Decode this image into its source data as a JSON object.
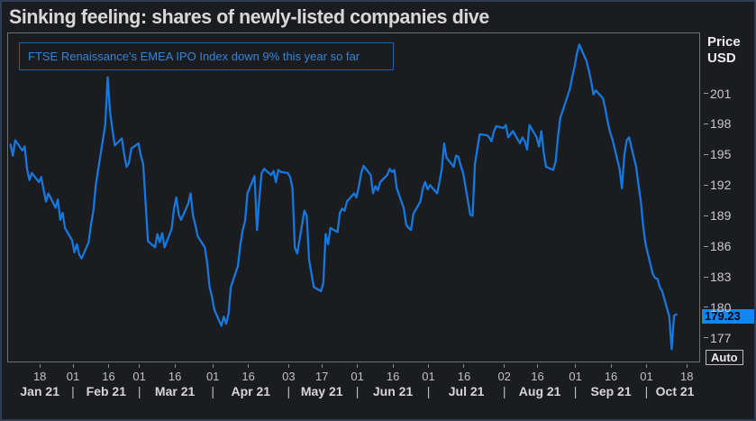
{
  "window": {
    "title": "Sinking feeling: shares of newly-listed companies dive"
  },
  "annotation": {
    "text": "FTSE Renaissance's EMEA IPO Index down 9% this year so far"
  },
  "y_axis": {
    "header_line1": "Price",
    "header_line2": "USD",
    "last_price_label": "179.23",
    "auto_label": "Auto"
  },
  "colors": {
    "line_blue": "#1677dd",
    "flag_bg": "#0f86f2",
    "annotation_border": "#1d63ac",
    "annotation_text": "#3585d6",
    "window_border": "#2f3d55",
    "plot_border": "#6e726b"
  },
  "chart_data": {
    "type": "line",
    "title": "Sinking feeling: shares of newly-listed companies dive",
    "annotation": "FTSE Renaissance's EMEA IPO Index down 9% this year so far",
    "ylabel": "Price USD",
    "legend_position": "none",
    "grid": false,
    "x_domain": [
      "2021-01-05",
      "2021-10-24"
    ],
    "y_domain": [
      174.6,
      206.8
    ],
    "y_ticks": [
      177,
      180,
      183,
      186,
      189,
      192,
      195,
      198,
      201
    ],
    "last_price": 179.23,
    "x_ticks": [
      {
        "date": "2021-01-18",
        "label": "18"
      },
      {
        "date": "2021-02-01",
        "label": "01"
      },
      {
        "date": "2021-02-16",
        "label": "16"
      },
      {
        "date": "2021-03-01",
        "label": "01"
      },
      {
        "date": "2021-03-16",
        "label": "16"
      },
      {
        "date": "2021-04-01",
        "label": "01"
      },
      {
        "date": "2021-04-16",
        "label": "16"
      },
      {
        "date": "2021-05-03",
        "label": "03"
      },
      {
        "date": "2021-05-17",
        "label": "17"
      },
      {
        "date": "2021-06-01",
        "label": "01"
      },
      {
        "date": "2021-06-16",
        "label": "16"
      },
      {
        "date": "2021-07-01",
        "label": "01"
      },
      {
        "date": "2021-07-16",
        "label": "16"
      },
      {
        "date": "2021-08-02",
        "label": "02"
      },
      {
        "date": "2021-08-16",
        "label": "16"
      },
      {
        "date": "2021-09-01",
        "label": "01"
      },
      {
        "date": "2021-09-16",
        "label": "16"
      },
      {
        "date": "2021-10-01",
        "label": "01"
      },
      {
        "date": "2021-10-18",
        "label": "18"
      }
    ],
    "months": [
      {
        "label": "Jan 21",
        "mid": "2021-01-18"
      },
      {
        "label": "Feb 21",
        "mid": "2021-02-15"
      },
      {
        "label": "Mar 21",
        "mid": "2021-03-16"
      },
      {
        "label": "Apr 21",
        "mid": "2021-04-17"
      },
      {
        "label": "May 21",
        "mid": "2021-05-17"
      },
      {
        "label": "Jun 21",
        "mid": "2021-06-16"
      },
      {
        "label": "Jul 21",
        "mid": "2021-07-17"
      },
      {
        "label": "Aug 21",
        "mid": "2021-08-17"
      },
      {
        "label": "Sep 21",
        "mid": "2021-09-16"
      },
      {
        "label": "Oct 21",
        "mid": "2021-10-13"
      }
    ],
    "month_dividers": [
      "2021-02-01",
      "2021-03-01",
      "2021-04-01",
      "2021-05-03",
      "2021-06-01",
      "2021-07-01",
      "2021-08-02",
      "2021-09-01",
      "2021-10-01"
    ],
    "series": [
      {
        "name": "FTSE Renaissance EMEA IPO Index",
        "color": "#1677dd",
        "points": [
          [
            "2021-01-06",
            195.9
          ],
          [
            "2021-01-07",
            194.8
          ],
          [
            "2021-01-08",
            196.3
          ],
          [
            "2021-01-11",
            195.3
          ],
          [
            "2021-01-12",
            195.7
          ],
          [
            "2021-01-13",
            193.5
          ],
          [
            "2021-01-14",
            192.4
          ],
          [
            "2021-01-15",
            193.1
          ],
          [
            "2021-01-18",
            192.2
          ],
          [
            "2021-01-19",
            192.7
          ],
          [
            "2021-01-20",
            191.4
          ],
          [
            "2021-01-21",
            190.3
          ],
          [
            "2021-01-22",
            191.1
          ],
          [
            "2021-01-25",
            189.7
          ],
          [
            "2021-01-26",
            190.5
          ],
          [
            "2021-01-27",
            188.5
          ],
          [
            "2021-01-28",
            189.2
          ],
          [
            "2021-01-29",
            187.7
          ],
          [
            "2021-02-01",
            186.5
          ],
          [
            "2021-02-02",
            185.3
          ],
          [
            "2021-02-03",
            186.1
          ],
          [
            "2021-02-04",
            185.1
          ],
          [
            "2021-02-05",
            184.7
          ],
          [
            "2021-02-08",
            186.3
          ],
          [
            "2021-02-09",
            188.1
          ],
          [
            "2021-02-10",
            189.4
          ],
          [
            "2021-02-11",
            191.9
          ],
          [
            "2021-02-12",
            193.4
          ],
          [
            "2021-02-15",
            197.8
          ],
          [
            "2021-02-16",
            202.5
          ],
          [
            "2021-02-17",
            199.1
          ],
          [
            "2021-02-18",
            197.4
          ],
          [
            "2021-02-19",
            195.8
          ],
          [
            "2021-02-22",
            196.5
          ],
          [
            "2021-02-23",
            194.9
          ],
          [
            "2021-02-24",
            193.7
          ],
          [
            "2021-02-25",
            194.1
          ],
          [
            "2021-02-26",
            195.5
          ],
          [
            "2021-03-01",
            196.0
          ],
          [
            "2021-03-02",
            194.8
          ],
          [
            "2021-03-03",
            194.0
          ],
          [
            "2021-03-04",
            190.3
          ],
          [
            "2021-03-05",
            186.4
          ],
          [
            "2021-03-08",
            185.8
          ],
          [
            "2021-03-09",
            187.1
          ],
          [
            "2021-03-10",
            186.3
          ],
          [
            "2021-03-11",
            187.2
          ],
          [
            "2021-03-12",
            185.8
          ],
          [
            "2021-03-15",
            187.6
          ],
          [
            "2021-03-16",
            189.6
          ],
          [
            "2021-03-17",
            190.7
          ],
          [
            "2021-03-18",
            189.0
          ],
          [
            "2021-03-19",
            188.5
          ],
          [
            "2021-03-22",
            190.1
          ],
          [
            "2021-03-23",
            191.1
          ],
          [
            "2021-03-24",
            188.9
          ],
          [
            "2021-03-25",
            188.0
          ],
          [
            "2021-03-26",
            186.9
          ],
          [
            "2021-03-29",
            185.8
          ],
          [
            "2021-03-30",
            184.3
          ],
          [
            "2021-03-31",
            181.9
          ],
          [
            "2021-04-01",
            181.0
          ],
          [
            "2021-04-02",
            179.7
          ],
          [
            "2021-04-05",
            178.1
          ],
          [
            "2021-04-06",
            179.0
          ],
          [
            "2021-04-07",
            178.3
          ],
          [
            "2021-04-08",
            179.3
          ],
          [
            "2021-04-09",
            181.9
          ],
          [
            "2021-04-12",
            184.0
          ],
          [
            "2021-04-13",
            186.1
          ],
          [
            "2021-04-14",
            187.5
          ],
          [
            "2021-04-15",
            188.4
          ],
          [
            "2021-04-16",
            191.1
          ],
          [
            "2021-04-19",
            192.8
          ],
          [
            "2021-04-20",
            187.5
          ],
          [
            "2021-04-21",
            190.6
          ],
          [
            "2021-04-22",
            193.1
          ],
          [
            "2021-04-23",
            193.5
          ],
          [
            "2021-04-26",
            192.9
          ],
          [
            "2021-04-27",
            193.3
          ],
          [
            "2021-04-28",
            192.2
          ],
          [
            "2021-04-29",
            193.4
          ],
          [
            "2021-04-30",
            193.2
          ],
          [
            "2021-05-03",
            193.1
          ],
          [
            "2021-05-04",
            192.7
          ],
          [
            "2021-05-05",
            191.6
          ],
          [
            "2021-05-06",
            185.8
          ],
          [
            "2021-05-07",
            185.2
          ],
          [
            "2021-05-10",
            189.4
          ],
          [
            "2021-05-11",
            188.9
          ],
          [
            "2021-05-12",
            184.6
          ],
          [
            "2021-05-13",
            183.2
          ],
          [
            "2021-05-14",
            181.9
          ],
          [
            "2021-05-17",
            181.5
          ],
          [
            "2021-05-18",
            182.3
          ],
          [
            "2021-05-19",
            187.1
          ],
          [
            "2021-05-20",
            186.1
          ],
          [
            "2021-05-21",
            187.7
          ],
          [
            "2021-05-24",
            187.3
          ],
          [
            "2021-05-25",
            189.2
          ],
          [
            "2021-05-26",
            189.6
          ],
          [
            "2021-05-27",
            189.4
          ],
          [
            "2021-05-28",
            190.3
          ],
          [
            "2021-05-31",
            191.1
          ],
          [
            "2021-06-01",
            190.7
          ],
          [
            "2021-06-02",
            191.8
          ],
          [
            "2021-06-03",
            193.1
          ],
          [
            "2021-06-04",
            193.8
          ],
          [
            "2021-06-07",
            192.9
          ],
          [
            "2021-06-08",
            191.1
          ],
          [
            "2021-06-09",
            191.8
          ],
          [
            "2021-06-10",
            191.4
          ],
          [
            "2021-06-11",
            192.2
          ],
          [
            "2021-06-14",
            192.9
          ],
          [
            "2021-06-15",
            193.5
          ],
          [
            "2021-06-16",
            193.2
          ],
          [
            "2021-06-17",
            193.4
          ],
          [
            "2021-06-18",
            191.6
          ],
          [
            "2021-06-21",
            189.6
          ],
          [
            "2021-06-22",
            188.0
          ],
          [
            "2021-06-23",
            187.7
          ],
          [
            "2021-06-24",
            187.5
          ],
          [
            "2021-06-25",
            189.1
          ],
          [
            "2021-06-28",
            190.3
          ],
          [
            "2021-06-29",
            191.6
          ],
          [
            "2021-06-30",
            192.2
          ],
          [
            "2021-07-01",
            191.5
          ],
          [
            "2021-07-02",
            191.9
          ],
          [
            "2021-07-05",
            191.1
          ],
          [
            "2021-07-06",
            192.2
          ],
          [
            "2021-07-07",
            193.5
          ],
          [
            "2021-07-08",
            196.0
          ],
          [
            "2021-07-09",
            194.6
          ],
          [
            "2021-07-12",
            193.7
          ],
          [
            "2021-07-13",
            194.8
          ],
          [
            "2021-07-14",
            194.7
          ],
          [
            "2021-07-15",
            193.8
          ],
          [
            "2021-07-16",
            193.1
          ],
          [
            "2021-07-19",
            189.0
          ],
          [
            "2021-07-20",
            188.9
          ],
          [
            "2021-07-21",
            194.0
          ],
          [
            "2021-07-22",
            195.5
          ],
          [
            "2021-07-23",
            196.9
          ],
          [
            "2021-07-26",
            196.8
          ],
          [
            "2021-07-27",
            196.6
          ],
          [
            "2021-07-28",
            196.2
          ],
          [
            "2021-07-29",
            197.2
          ],
          [
            "2021-07-30",
            197.7
          ],
          [
            "2021-08-02",
            197.5
          ],
          [
            "2021-08-03",
            197.8
          ],
          [
            "2021-08-04",
            196.6
          ],
          [
            "2021-08-06",
            197.2
          ],
          [
            "2021-08-09",
            196.0
          ],
          [
            "2021-08-10",
            196.6
          ],
          [
            "2021-08-11",
            196.2
          ],
          [
            "2021-08-12",
            195.4
          ],
          [
            "2021-08-13",
            197.8
          ],
          [
            "2021-08-16",
            196.6
          ],
          [
            "2021-08-17",
            195.7
          ],
          [
            "2021-08-18",
            197.2
          ],
          [
            "2021-08-19",
            195.1
          ],
          [
            "2021-08-20",
            193.7
          ],
          [
            "2021-08-23",
            193.4
          ],
          [
            "2021-08-24",
            194.2
          ],
          [
            "2021-08-25",
            196.6
          ],
          [
            "2021-08-26",
            198.5
          ],
          [
            "2021-08-27",
            199.2
          ],
          [
            "2021-08-30",
            201.3
          ],
          [
            "2021-08-31",
            202.5
          ],
          [
            "2021-09-01",
            203.5
          ],
          [
            "2021-09-02",
            204.8
          ],
          [
            "2021-09-03",
            205.7
          ],
          [
            "2021-09-06",
            204.1
          ],
          [
            "2021-09-07",
            203.2
          ],
          [
            "2021-09-08",
            202.1
          ],
          [
            "2021-09-09",
            200.8
          ],
          [
            "2021-09-10",
            201.2
          ],
          [
            "2021-09-13",
            200.4
          ],
          [
            "2021-09-14",
            199.4
          ],
          [
            "2021-09-15",
            198.1
          ],
          [
            "2021-09-16",
            197.1
          ],
          [
            "2021-09-17",
            196.4
          ],
          [
            "2021-09-20",
            193.5
          ],
          [
            "2021-09-21",
            191.6
          ],
          [
            "2021-09-22",
            194.8
          ],
          [
            "2021-09-23",
            196.3
          ],
          [
            "2021-09-24",
            196.6
          ],
          [
            "2021-09-27",
            193.7
          ],
          [
            "2021-09-28",
            191.9
          ],
          [
            "2021-09-29",
            190.3
          ],
          [
            "2021-09-30",
            187.8
          ],
          [
            "2021-10-01",
            186.1
          ],
          [
            "2021-10-04",
            183.2
          ],
          [
            "2021-10-05",
            182.8
          ],
          [
            "2021-10-06",
            182.7
          ],
          [
            "2021-10-07",
            181.9
          ],
          [
            "2021-10-08",
            181.5
          ],
          [
            "2021-10-11",
            179.0
          ],
          [
            "2021-10-12",
            175.8
          ],
          [
            "2021-10-13",
            179.1
          ],
          [
            "2021-10-14",
            179.23
          ]
        ]
      }
    ]
  }
}
